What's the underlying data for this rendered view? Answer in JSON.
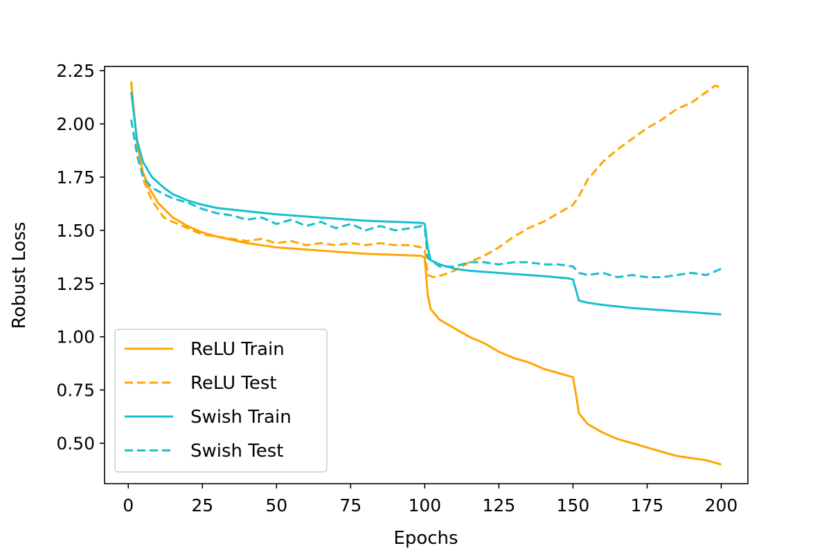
{
  "chart_data": {
    "type": "line",
    "title": "",
    "xlabel": "Epochs",
    "ylabel": "Robust Loss",
    "xlim": [
      -8,
      209
    ],
    "ylim": [
      0.31,
      2.27
    ],
    "xticks": [
      0,
      25,
      50,
      75,
      100,
      125,
      150,
      175,
      200
    ],
    "xtick_labels": [
      "0",
      "25",
      "50",
      "75",
      "100",
      "125",
      "150",
      "175",
      "200"
    ],
    "yticks": [
      0.5,
      0.75,
      1.0,
      1.25,
      1.5,
      1.75,
      2.0,
      2.25
    ],
    "ytick_labels": [
      "0.50",
      "0.75",
      "1.00",
      "1.25",
      "1.50",
      "1.75",
      "2.00",
      "2.25"
    ],
    "grid": false,
    "legend_position": "lower-left",
    "series": [
      {
        "name": "ReLU Train",
        "color": "#FFA500",
        "dash": "solid",
        "points": [
          [
            1,
            2.19
          ],
          [
            3,
            1.9
          ],
          [
            5,
            1.77
          ],
          [
            7,
            1.7
          ],
          [
            10,
            1.63
          ],
          [
            15,
            1.56
          ],
          [
            20,
            1.52
          ],
          [
            25,
            1.49
          ],
          [
            30,
            1.47
          ],
          [
            40,
            1.44
          ],
          [
            50,
            1.42
          ],
          [
            60,
            1.41
          ],
          [
            70,
            1.4
          ],
          [
            80,
            1.39
          ],
          [
            90,
            1.385
          ],
          [
            99,
            1.38
          ],
          [
            100,
            1.37
          ],
          [
            101,
            1.2
          ],
          [
            102,
            1.13
          ],
          [
            105,
            1.08
          ],
          [
            110,
            1.04
          ],
          [
            115,
            1.0
          ],
          [
            120,
            0.97
          ],
          [
            125,
            0.93
          ],
          [
            130,
            0.9
          ],
          [
            135,
            0.88
          ],
          [
            140,
            0.85
          ],
          [
            145,
            0.83
          ],
          [
            150,
            0.81
          ],
          [
            151,
            0.73
          ],
          [
            152,
            0.64
          ],
          [
            155,
            0.59
          ],
          [
            160,
            0.55
          ],
          [
            165,
            0.52
          ],
          [
            170,
            0.5
          ],
          [
            175,
            0.48
          ],
          [
            180,
            0.46
          ],
          [
            185,
            0.44
          ],
          [
            190,
            0.43
          ],
          [
            195,
            0.42
          ],
          [
            200,
            0.4
          ]
        ]
      },
      {
        "name": "ReLU Test",
        "color": "#FFA500",
        "dash": "dashed",
        "points": [
          [
            1,
            2.2
          ],
          [
            3,
            1.9
          ],
          [
            5,
            1.74
          ],
          [
            8,
            1.64
          ],
          [
            12,
            1.56
          ],
          [
            15,
            1.54
          ],
          [
            20,
            1.51
          ],
          [
            25,
            1.48
          ],
          [
            30,
            1.47
          ],
          [
            35,
            1.46
          ],
          [
            40,
            1.45
          ],
          [
            45,
            1.46
          ],
          [
            50,
            1.44
          ],
          [
            55,
            1.45
          ],
          [
            60,
            1.43
          ],
          [
            65,
            1.44
          ],
          [
            70,
            1.43
          ],
          [
            75,
            1.44
          ],
          [
            80,
            1.43
          ],
          [
            85,
            1.44
          ],
          [
            90,
            1.43
          ],
          [
            95,
            1.43
          ],
          [
            99,
            1.42
          ],
          [
            100,
            1.41
          ],
          [
            101,
            1.29
          ],
          [
            103,
            1.28
          ],
          [
            106,
            1.29
          ],
          [
            110,
            1.31
          ],
          [
            115,
            1.35
          ],
          [
            120,
            1.38
          ],
          [
            125,
            1.42
          ],
          [
            130,
            1.47
          ],
          [
            135,
            1.51
          ],
          [
            140,
            1.54
          ],
          [
            145,
            1.58
          ],
          [
            150,
            1.62
          ],
          [
            152,
            1.66
          ],
          [
            155,
            1.74
          ],
          [
            160,
            1.82
          ],
          [
            165,
            1.88
          ],
          [
            170,
            1.93
          ],
          [
            175,
            1.98
          ],
          [
            180,
            2.02
          ],
          [
            185,
            2.07
          ],
          [
            190,
            2.1
          ],
          [
            195,
            2.15
          ],
          [
            198,
            2.18
          ],
          [
            200,
            2.17
          ]
        ]
      },
      {
        "name": "Swish Train",
        "color": "#17BECF",
        "dash": "solid",
        "points": [
          [
            1,
            2.15
          ],
          [
            3,
            1.92
          ],
          [
            5,
            1.82
          ],
          [
            8,
            1.75
          ],
          [
            12,
            1.7
          ],
          [
            15,
            1.67
          ],
          [
            20,
            1.64
          ],
          [
            25,
            1.62
          ],
          [
            30,
            1.605
          ],
          [
            40,
            1.59
          ],
          [
            50,
            1.575
          ],
          [
            60,
            1.565
          ],
          [
            70,
            1.555
          ],
          [
            80,
            1.545
          ],
          [
            90,
            1.54
          ],
          [
            99,
            1.535
          ],
          [
            100,
            1.53
          ],
          [
            101,
            1.42
          ],
          [
            102,
            1.36
          ],
          [
            105,
            1.34
          ],
          [
            110,
            1.32
          ],
          [
            115,
            1.31
          ],
          [
            120,
            1.305
          ],
          [
            130,
            1.295
          ],
          [
            140,
            1.285
          ],
          [
            148,
            1.275
          ],
          [
            150,
            1.27
          ],
          [
            151,
            1.22
          ],
          [
            152,
            1.17
          ],
          [
            155,
            1.16
          ],
          [
            160,
            1.15
          ],
          [
            170,
            1.135
          ],
          [
            180,
            1.125
          ],
          [
            190,
            1.115
          ],
          [
            200,
            1.105
          ]
        ]
      },
      {
        "name": "Swish Test",
        "color": "#17BECF",
        "dash": "dashed",
        "points": [
          [
            1,
            2.02
          ],
          [
            3,
            1.85
          ],
          [
            5,
            1.75
          ],
          [
            8,
            1.7
          ],
          [
            12,
            1.67
          ],
          [
            15,
            1.65
          ],
          [
            20,
            1.63
          ],
          [
            25,
            1.6
          ],
          [
            30,
            1.58
          ],
          [
            35,
            1.57
          ],
          [
            40,
            1.55
          ],
          [
            45,
            1.56
          ],
          [
            50,
            1.53
          ],
          [
            55,
            1.55
          ],
          [
            60,
            1.52
          ],
          [
            65,
            1.54
          ],
          [
            70,
            1.51
          ],
          [
            75,
            1.53
          ],
          [
            80,
            1.5
          ],
          [
            85,
            1.52
          ],
          [
            90,
            1.5
          ],
          [
            95,
            1.51
          ],
          [
            99,
            1.52
          ],
          [
            100,
            1.51
          ],
          [
            101,
            1.37
          ],
          [
            105,
            1.33
          ],
          [
            110,
            1.33
          ],
          [
            115,
            1.35
          ],
          [
            120,
            1.35
          ],
          [
            125,
            1.34
          ],
          [
            130,
            1.35
          ],
          [
            135,
            1.35
          ],
          [
            140,
            1.34
          ],
          [
            145,
            1.34
          ],
          [
            150,
            1.33
          ],
          [
            152,
            1.3
          ],
          [
            155,
            1.29
          ],
          [
            160,
            1.3
          ],
          [
            165,
            1.28
          ],
          [
            170,
            1.29
          ],
          [
            175,
            1.28
          ],
          [
            180,
            1.28
          ],
          [
            185,
            1.29
          ],
          [
            190,
            1.3
          ],
          [
            195,
            1.29
          ],
          [
            200,
            1.32
          ]
        ]
      }
    ]
  }
}
